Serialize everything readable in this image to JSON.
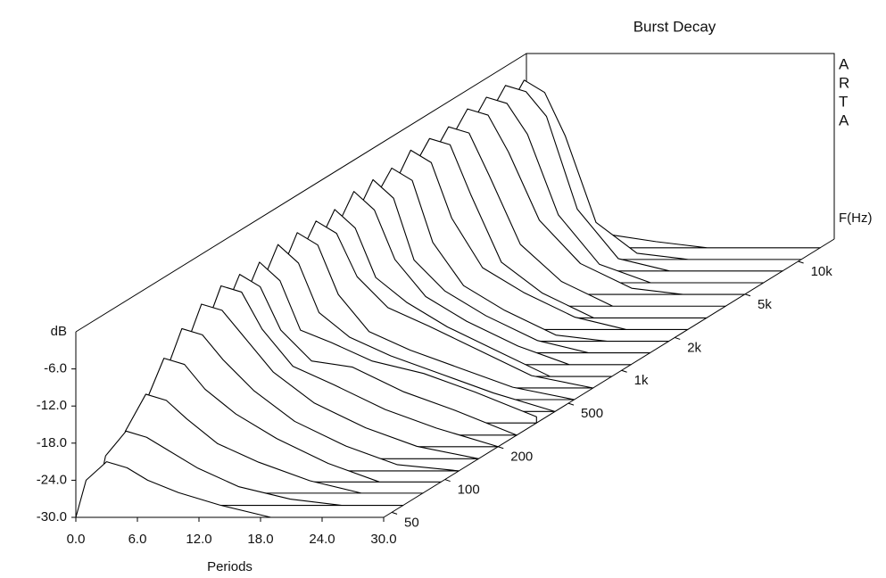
{
  "chart_data": {
    "type": "waterfall",
    "title": "Burst Decay",
    "side_label": [
      "A",
      "R",
      "T",
      "A"
    ],
    "x_label": "Periods",
    "y_label": "dB",
    "z_label": "F(Hz)",
    "color": "#000000",
    "xlim": [
      0,
      30
    ],
    "ylim": [
      -30,
      0
    ],
    "zlim": [
      45,
      16000
    ],
    "zscale": "log",
    "xticks": [
      {
        "value": 0,
        "label": "0.0"
      },
      {
        "value": 6,
        "label": "6.0"
      },
      {
        "value": 12,
        "label": "12.0"
      },
      {
        "value": 18,
        "label": "18.0"
      },
      {
        "value": 24,
        "label": "24.0"
      },
      {
        "value": 30,
        "label": "30.0"
      }
    ],
    "yticks": [
      {
        "value": -6,
        "label": "-6.0"
      },
      {
        "value": -12,
        "label": "-12.0"
      },
      {
        "value": -18,
        "label": "-18.0"
      },
      {
        "value": -24,
        "label": "-24.0"
      },
      {
        "value": -30,
        "label": "-30.0"
      }
    ],
    "zticks": [
      {
        "value": 50,
        "label": "50"
      },
      {
        "value": 100,
        "label": "100"
      },
      {
        "value": 200,
        "label": "200"
      },
      {
        "value": 500,
        "label": "500"
      },
      {
        "value": 1000,
        "label": "1k"
      },
      {
        "value": 2000,
        "label": "2k"
      },
      {
        "value": 5000,
        "label": "5k"
      },
      {
        "value": 10000,
        "label": "10k"
      }
    ],
    "x": [
      0,
      1,
      3,
      5,
      7,
      10,
      14,
      19,
      24,
      30
    ],
    "slices": [
      {
        "z": 45,
        "values": [
          -30,
          -24,
          -21,
          -22,
          -24,
          -26,
          -28,
          -30,
          -30,
          -30
        ]
      },
      {
        "z": 58,
        "values": [
          -30,
          -22,
          -18,
          -19,
          -21,
          -24,
          -27,
          -29,
          -30,
          -30
        ]
      },
      {
        "z": 75,
        "values": [
          -30,
          -20,
          -14,
          -15,
          -18,
          -22,
          -25,
          -28,
          -30,
          -30
        ]
      },
      {
        "z": 95,
        "values": [
          -30,
          -18,
          -10,
          -11,
          -15,
          -19,
          -23,
          -27,
          -30,
          -30
        ]
      },
      {
        "z": 120,
        "values": [
          -30,
          -16,
          -7,
          -8,
          -12,
          -17,
          -22,
          -26,
          -29,
          -30
        ]
      },
      {
        "z": 155,
        "values": [
          -30,
          -14,
          -5,
          -6,
          -10,
          -16,
          -21,
          -25,
          -28,
          -30
        ]
      },
      {
        "z": 200,
        "values": [
          -30,
          -13,
          -4,
          -5,
          -11,
          -17,
          -20,
          -24,
          -27,
          -30
        ]
      },
      {
        "z": 255,
        "values": [
          -30,
          -12,
          -4,
          -6,
          -13,
          -18,
          -19,
          -23,
          -26,
          -30
        ]
      },
      {
        "z": 330,
        "values": [
          -30,
          -12,
          -4,
          -7,
          -15,
          -17,
          -20,
          -22,
          -25,
          -29
        ]
      },
      {
        "z": 420,
        "values": [
          -30,
          -11,
          -3,
          -6,
          -14,
          -18,
          -21,
          -24,
          -27,
          -30
        ]
      },
      {
        "z": 540,
        "values": [
          -30,
          -11,
          -3,
          -5,
          -13,
          -19,
          -22,
          -25,
          -28,
          -30
        ]
      },
      {
        "z": 690,
        "values": [
          -30,
          -10,
          -3,
          -5,
          -12,
          -17,
          -20,
          -24,
          -28,
          -30
        ]
      },
      {
        "z": 880,
        "values": [
          -30,
          -10,
          -3,
          -6,
          -14,
          -18,
          -22,
          -26,
          -30,
          -30
        ]
      },
      {
        "z": 1130,
        "values": [
          -30,
          -9,
          -2,
          -5,
          -13,
          -19,
          -23,
          -27,
          -30,
          -30
        ]
      },
      {
        "z": 1450,
        "values": [
          -30,
          -9,
          -2,
          -5,
          -15,
          -20,
          -24,
          -28,
          -30,
          -30
        ]
      },
      {
        "z": 1850,
        "values": [
          -30,
          -8,
          -2,
          -4,
          -14,
          -21,
          -25,
          -29,
          -30,
          -30
        ]
      },
      {
        "z": 2370,
        "values": [
          -30,
          -8,
          -1,
          -3,
          -12,
          -20,
          -24,
          -28,
          -30,
          -30
        ]
      },
      {
        "z": 3030,
        "values": [
          -30,
          -7,
          -1,
          -2,
          -10,
          -21,
          -26,
          -30,
          -30,
          -30
        ]
      },
      {
        "z": 3880,
        "values": [
          -30,
          -7,
          -1,
          -2,
          -9,
          -20,
          -26,
          -30,
          -30,
          -30
        ]
      },
      {
        "z": 4970,
        "values": [
          -30,
          -6,
          0,
          -1,
          -7,
          -18,
          -25,
          -29,
          -30,
          -30
        ]
      },
      {
        "z": 6360,
        "values": [
          -30,
          -6,
          0,
          -1,
          -6,
          -19,
          -27,
          -30,
          -30,
          -30
        ]
      },
      {
        "z": 8150,
        "values": [
          -30,
          -6,
          0,
          -1,
          -5,
          -20,
          -28,
          -30,
          -30,
          -30
        ]
      },
      {
        "z": 10400,
        "values": [
          -30,
          -7,
          -1,
          -3,
          -10,
          -24,
          -29,
          -30,
          -30,
          -30
        ]
      },
      {
        "z": 13300,
        "values": [
          -30,
          -20,
          -24,
          -26,
          -27,
          -28,
          -29,
          -30,
          -30,
          -30
        ]
      }
    ]
  }
}
